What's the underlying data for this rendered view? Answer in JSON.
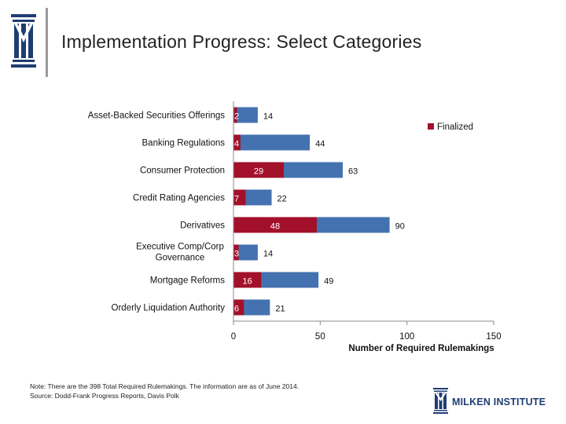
{
  "header": {
    "title": "Implementation Progress: Select Categories",
    "logo_icon": "milken-column-logo-icon"
  },
  "chart_data": {
    "type": "bar",
    "orientation": "horizontal",
    "stacked": "overlay",
    "categories": [
      "Asset-Backed Securities Offerings",
      "Banking Regulations",
      "Consumer Protection",
      "Credit Rating Agencies",
      "Derivatives",
      "Executive Comp/Corp Governance",
      "Mortgage Reforms",
      "Orderly Liquidation Authority"
    ],
    "series": [
      {
        "name": "",
        "role": "required",
        "color": "#4472b0",
        "values": [
          14,
          44,
          63,
          22,
          90,
          14,
          49,
          21
        ]
      },
      {
        "name": "Finalized",
        "role": "finalized",
        "color": "#a3102a",
        "values": [
          2,
          4,
          29,
          7,
          48,
          3,
          16,
          6
        ]
      }
    ],
    "xlabel": "Number of Required Rulemakings",
    "ylabel": "",
    "xlim": [
      0,
      150
    ],
    "xticks": [
      0,
      50,
      100,
      150
    ],
    "grid": false,
    "legend_position": "top-right"
  },
  "footnote": {
    "line1": "Note: There are the 398 Total Required Rulemakings. The information are as of June 2014.",
    "line2": "Source: Dodd-Frank Progress Reports, Davis Polk"
  },
  "brand": {
    "name": "MILKEN INSTITUTE",
    "icon": "milken-column-logo-icon",
    "color": "#1f3d73"
  }
}
